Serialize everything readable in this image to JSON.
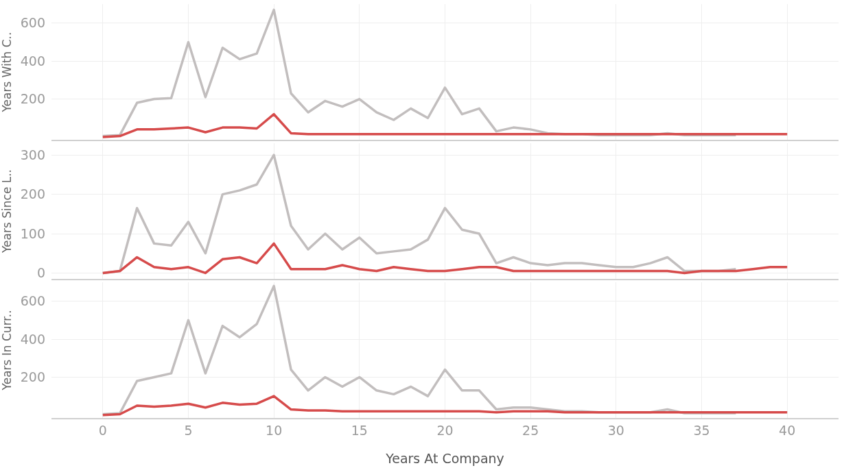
{
  "chart_data": [
    {
      "type": "line",
      "ylabel": "Years With C..",
      "x": [
        0,
        1,
        2,
        3,
        4,
        5,
        6,
        7,
        8,
        9,
        10,
        11,
        12,
        13,
        14,
        15,
        16,
        17,
        18,
        19,
        20,
        21,
        22,
        23,
        24,
        25,
        26,
        27,
        28,
        29,
        30,
        31,
        32,
        33,
        34,
        35,
        36,
        37,
        38,
        39,
        40
      ],
      "series": [
        {
          "color": "#c2bebe",
          "values": [
            5,
            10,
            180,
            200,
            205,
            500,
            210,
            470,
            410,
            440,
            670,
            230,
            130,
            190,
            160,
            200,
            130,
            90,
            150,
            100,
            260,
            120,
            150,
            30,
            50,
            40,
            20,
            15,
            15,
            10,
            10,
            10,
            10,
            20,
            10,
            10,
            10,
            10,
            null,
            null,
            null
          ]
        },
        {
          "color": "#d64b4b",
          "values": [
            0,
            5,
            40,
            40,
            45,
            50,
            25,
            50,
            50,
            45,
            120,
            20,
            15,
            15,
            15,
            15,
            15,
            15,
            15,
            15,
            15,
            15,
            15,
            15,
            15,
            15,
            15,
            15,
            15,
            15,
            15,
            15,
            15,
            15,
            15,
            15,
            15,
            15,
            15,
            15,
            15
          ]
        }
      ],
      "xlim": [
        -3,
        43
      ],
      "xticks": [
        0,
        5,
        10,
        15,
        20,
        25,
        30,
        35,
        40
      ],
      "ylim": [
        -15,
        700
      ],
      "yticks": [
        200,
        400,
        600
      ],
      "grid": true,
      "tick_labels": "y"
    },
    {
      "type": "line",
      "ylabel": "Years Since L..",
      "x": [
        0,
        1,
        2,
        3,
        4,
        5,
        6,
        7,
        8,
        9,
        10,
        11,
        12,
        13,
        14,
        15,
        16,
        17,
        18,
        19,
        20,
        21,
        22,
        23,
        24,
        25,
        26,
        27,
        28,
        29,
        30,
        31,
        32,
        33,
        34,
        35,
        36,
        37,
        38,
        39,
        40
      ],
      "series": [
        {
          "color": "#c2bebe",
          "values": [
            0,
            5,
            165,
            75,
            70,
            130,
            50,
            200,
            210,
            225,
            300,
            120,
            60,
            100,
            60,
            90,
            50,
            55,
            60,
            85,
            165,
            110,
            100,
            25,
            40,
            25,
            20,
            25,
            25,
            20,
            15,
            15,
            25,
            40,
            5,
            5,
            5,
            10,
            null,
            null,
            null
          ]
        },
        {
          "color": "#d64b4b",
          "values": [
            0,
            5,
            40,
            15,
            10,
            15,
            0,
            35,
            40,
            25,
            75,
            10,
            10,
            10,
            20,
            10,
            5,
            15,
            10,
            5,
            5,
            10,
            15,
            15,
            5,
            5,
            5,
            5,
            5,
            5,
            5,
            5,
            5,
            5,
            0,
            5,
            5,
            5,
            10,
            15,
            15
          ]
        }
      ],
      "xlim": [
        -3,
        43
      ],
      "xticks": [
        0,
        5,
        10,
        15,
        20,
        25,
        30,
        35,
        40
      ],
      "ylim": [
        -15,
        330
      ],
      "yticks": [
        0,
        100,
        200,
        300
      ],
      "grid": true,
      "tick_labels": "y"
    },
    {
      "type": "line",
      "ylabel": "Years In Curr..",
      "xlabel": "Years At Company",
      "x": [
        0,
        1,
        2,
        3,
        4,
        5,
        6,
        7,
        8,
        9,
        10,
        11,
        12,
        13,
        14,
        15,
        16,
        17,
        18,
        19,
        20,
        21,
        22,
        23,
        24,
        25,
        26,
        27,
        28,
        29,
        30,
        31,
        32,
        33,
        34,
        35,
        36,
        37,
        38,
        39,
        40
      ],
      "series": [
        {
          "color": "#c2bebe",
          "values": [
            5,
            10,
            180,
            200,
            220,
            500,
            220,
            470,
            410,
            480,
            680,
            240,
            130,
            200,
            150,
            200,
            130,
            110,
            150,
            100,
            240,
            130,
            130,
            30,
            40,
            40,
            30,
            20,
            20,
            15,
            15,
            15,
            15,
            30,
            10,
            10,
            10,
            10,
            null,
            null,
            null
          ]
        },
        {
          "color": "#d64b4b",
          "values": [
            0,
            5,
            50,
            45,
            50,
            60,
            40,
            65,
            55,
            60,
            100,
            30,
            25,
            25,
            20,
            20,
            20,
            20,
            20,
            20,
            20,
            20,
            20,
            15,
            20,
            20,
            20,
            15,
            15,
            15,
            15,
            15,
            15,
            15,
            15,
            15,
            15,
            15,
            15,
            15,
            15
          ]
        }
      ],
      "xlim": [
        -3,
        43
      ],
      "xticks": [
        0,
        5,
        10,
        15,
        20,
        25,
        30,
        35,
        40
      ],
      "ylim": [
        -15,
        700
      ],
      "yticks": [
        200,
        400,
        600
      ],
      "grid": true
    }
  ]
}
